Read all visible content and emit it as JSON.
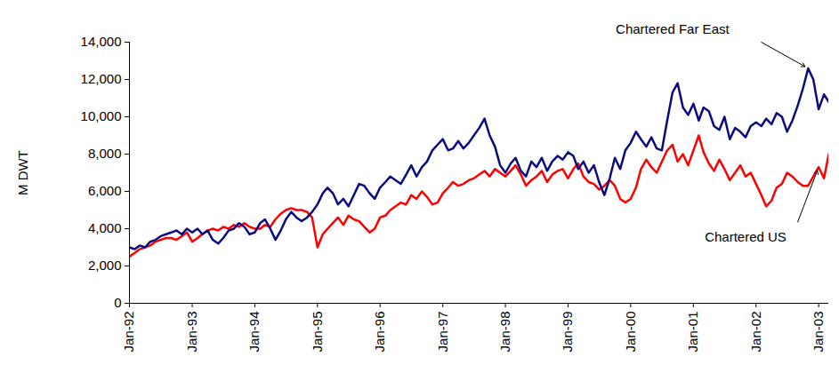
{
  "chart_data": {
    "type": "line",
    "y_label": "M DWT",
    "x": [
      "1992-01",
      "1992-02",
      "1992-03",
      "1992-04",
      "1992-05",
      "1992-06",
      "1992-07",
      "1992-08",
      "1992-09",
      "1992-10",
      "1992-11",
      "1992-12",
      "1993-01",
      "1993-02",
      "1993-03",
      "1993-04",
      "1993-05",
      "1993-06",
      "1993-07",
      "1993-08",
      "1993-09",
      "1993-10",
      "1993-11",
      "1993-12",
      "1994-01",
      "1994-02",
      "1994-03",
      "1994-04",
      "1994-05",
      "1994-06",
      "1994-07",
      "1994-08",
      "1994-09",
      "1994-10",
      "1994-11",
      "1994-12",
      "1995-01",
      "1995-02",
      "1995-03",
      "1995-04",
      "1995-05",
      "1995-06",
      "1995-07",
      "1995-08",
      "1995-09",
      "1995-10",
      "1995-11",
      "1995-12",
      "1996-01",
      "1996-02",
      "1996-03",
      "1996-04",
      "1996-05",
      "1996-06",
      "1996-07",
      "1996-08",
      "1996-09",
      "1996-10",
      "1996-11",
      "1996-12",
      "1997-01",
      "1997-02",
      "1997-03",
      "1997-04",
      "1997-05",
      "1997-06",
      "1997-07",
      "1997-08",
      "1997-09",
      "1997-10",
      "1997-11",
      "1997-12",
      "1998-01",
      "1998-02",
      "1998-03",
      "1998-04",
      "1998-05",
      "1998-06",
      "1998-07",
      "1998-08",
      "1998-09",
      "1998-10",
      "1998-11",
      "1998-12",
      "1999-01",
      "1999-02",
      "1999-03",
      "1999-04",
      "1999-05",
      "1999-06",
      "1999-07",
      "1999-08",
      "1999-09",
      "1999-10",
      "1999-11",
      "1999-12",
      "2000-01",
      "2000-02",
      "2000-03",
      "2000-04",
      "2000-05",
      "2000-06",
      "2000-07",
      "2000-08",
      "2000-09",
      "2000-10",
      "2000-11",
      "2000-12",
      "2001-01",
      "2001-02",
      "2001-03",
      "2001-04",
      "2001-05",
      "2001-06",
      "2001-07",
      "2001-08",
      "2001-09",
      "2001-10",
      "2001-11",
      "2001-12",
      "2002-01",
      "2002-02",
      "2002-03",
      "2002-04",
      "2002-05",
      "2002-06",
      "2002-07",
      "2002-08",
      "2002-09",
      "2002-10",
      "2002-11",
      "2002-12",
      "2003-01",
      "2003-02",
      "2003-03"
    ],
    "series": [
      {
        "name": "Chartered Far East",
        "color": "#0b0b80",
        "values": [
          3000,
          2900,
          3100,
          3000,
          3300,
          3400,
          3600,
          3700,
          3800,
          3900,
          3700,
          4000,
          3800,
          4000,
          3700,
          3900,
          3400,
          3200,
          3500,
          3900,
          4000,
          4300,
          4100,
          3700,
          3800,
          4300,
          4500,
          4000,
          3400,
          3900,
          4500,
          4900,
          4600,
          4400,
          4600,
          4900,
          5300,
          5900,
          6200,
          5900,
          5300,
          5600,
          5200,
          5800,
          6400,
          6300,
          5900,
          5600,
          6200,
          6500,
          6800,
          6600,
          6400,
          6900,
          7400,
          6800,
          7300,
          7600,
          8200,
          8500,
          8800,
          8200,
          8300,
          8700,
          8300,
          8600,
          9000,
          9400,
          9900,
          9000,
          8400,
          7400,
          7000,
          7500,
          7800,
          7100,
          6800,
          7600,
          7300,
          7800,
          7100,
          7600,
          7900,
          7700,
          8100,
          7900,
          7200,
          7600,
          7000,
          7400,
          6500,
          5800,
          6700,
          7800,
          7200,
          8200,
          8600,
          9200,
          8800,
          8400,
          8900,
          8300,
          8200,
          9800,
          11300,
          11800,
          10500,
          10100,
          10700,
          9800,
          10500,
          10300,
          9500,
          9300,
          10000,
          8800,
          9400,
          9200,
          8900,
          9500,
          9700,
          9500,
          9900,
          9600,
          10200,
          10000,
          9200,
          9800,
          10600,
          11500,
          12600,
          12000,
          10400,
          11200,
          10800
        ]
      },
      {
        "name": "Chartered US",
        "color": "#ff0000",
        "values": [
          2500,
          2700,
          2900,
          3000,
          3100,
          3300,
          3400,
          3500,
          3500,
          3400,
          3600,
          3800,
          3300,
          3500,
          3700,
          3900,
          4000,
          3900,
          4100,
          4000,
          4200,
          4100,
          4300,
          4100,
          4000,
          4000,
          4200,
          4100,
          4500,
          4800,
          5000,
          5100,
          5000,
          5000,
          4900,
          4600,
          3000,
          3700,
          4000,
          4300,
          4600,
          4200,
          4700,
          4500,
          4400,
          4100,
          3800,
          4000,
          4600,
          4700,
          5000,
          5200,
          5400,
          5300,
          5800,
          5600,
          6000,
          5700,
          5300,
          5400,
          5900,
          6200,
          6500,
          6300,
          6400,
          6600,
          6700,
          6900,
          7100,
          6800,
          7200,
          7000,
          6800,
          7100,
          7400,
          6900,
          6300,
          6600,
          6800,
          7100,
          6500,
          6900,
          7100,
          7200,
          6700,
          7200,
          7500,
          6800,
          6500,
          6400,
          6100,
          6300,
          6600,
          6300,
          5600,
          5400,
          5600,
          6200,
          7200,
          7700,
          7300,
          7000,
          7600,
          8200,
          8500,
          7600,
          8000,
          7400,
          8200,
          9000,
          8100,
          7500,
          7100,
          7700,
          7200,
          6600,
          7000,
          7400,
          6800,
          7000,
          6400,
          5800,
          5200,
          5500,
          6200,
          6400,
          7000,
          6800,
          6500,
          6300,
          6300,
          6800,
          7300,
          6700,
          8000
        ]
      }
    ],
    "xlim": [
      "1992-01",
      "2003-03"
    ],
    "xticks": [
      {
        "value": "1992-01",
        "label": "Jan-92"
      },
      {
        "value": "1993-01",
        "label": "Jan-93"
      },
      {
        "value": "1994-01",
        "label": "Jan-94"
      },
      {
        "value": "1995-01",
        "label": "Jan-95"
      },
      {
        "value": "1996-01",
        "label": "Jan-96"
      },
      {
        "value": "1997-01",
        "label": "Jan-97"
      },
      {
        "value": "1998-01",
        "label": "Jan-98"
      },
      {
        "value": "1999-01",
        "label": "Jan-99"
      },
      {
        "value": "2000-01",
        "label": "Jan-00"
      },
      {
        "value": "2001-01",
        "label": "Jan-01"
      },
      {
        "value": "2002-01",
        "label": "Jan-02"
      },
      {
        "value": "2003-01",
        "label": "Jan-03"
      }
    ],
    "ylim": [
      0,
      14000
    ],
    "yticks": [
      0,
      {
        "value": 2000,
        "label": "2,000"
      },
      {
        "value": 4000,
        "label": "4,000"
      },
      {
        "value": 6000,
        "label": "6,000"
      },
      {
        "value": 8000,
        "label": "8,000"
      },
      {
        "value": 10000,
        "label": "10,000"
      },
      {
        "value": 12000,
        "label": "12,000"
      },
      {
        "value": 14000,
        "label": "14,000"
      }
    ],
    "grid": false
  }
}
